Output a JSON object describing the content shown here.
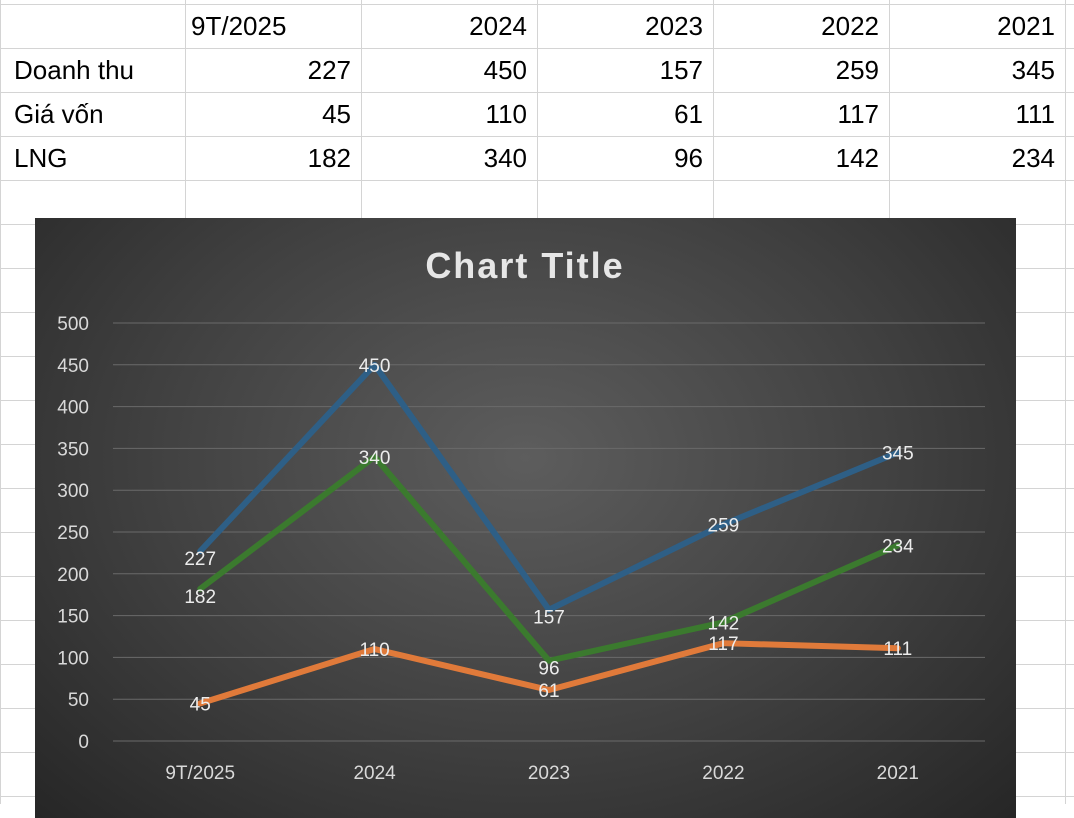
{
  "table": {
    "headers": [
      "",
      "9T/2025",
      "2024",
      "2023",
      "2022",
      "2021"
    ],
    "rows": [
      {
        "label": "Doanh thu",
        "values": [
          "227",
          "450",
          "157",
          "259",
          "345"
        ]
      },
      {
        "label": "Giá vốn",
        "values": [
          "45",
          "110",
          "61",
          "117",
          "111"
        ]
      },
      {
        "label": "LNG",
        "values": [
          "182",
          "340",
          "96",
          "142",
          "234"
        ]
      }
    ]
  },
  "colors": {
    "doanh_thu": "#2e5f86",
    "gia_von": "#e07a3a",
    "lng": "#3b7a2e",
    "gridline": "#6a6a6a",
    "chart_text": "#e6e6e6"
  },
  "chart_data": {
    "type": "line",
    "title": "Chart Title",
    "categories": [
      "9T/2025",
      "2024",
      "2023",
      "2022",
      "2021"
    ],
    "series": [
      {
        "name": "Doanh thu",
        "values": [
          227,
          450,
          157,
          259,
          345
        ]
      },
      {
        "name": "Giá vốn",
        "values": [
          45,
          110,
          61,
          117,
          111
        ]
      },
      {
        "name": "LNG",
        "values": [
          182,
          340,
          96,
          142,
          234
        ]
      }
    ],
    "ylim": [
      0,
      500
    ],
    "yticks": [
      0,
      50,
      100,
      150,
      200,
      250,
      300,
      350,
      400,
      450,
      500
    ],
    "grid": true,
    "legend": "none",
    "data_labels": true
  }
}
